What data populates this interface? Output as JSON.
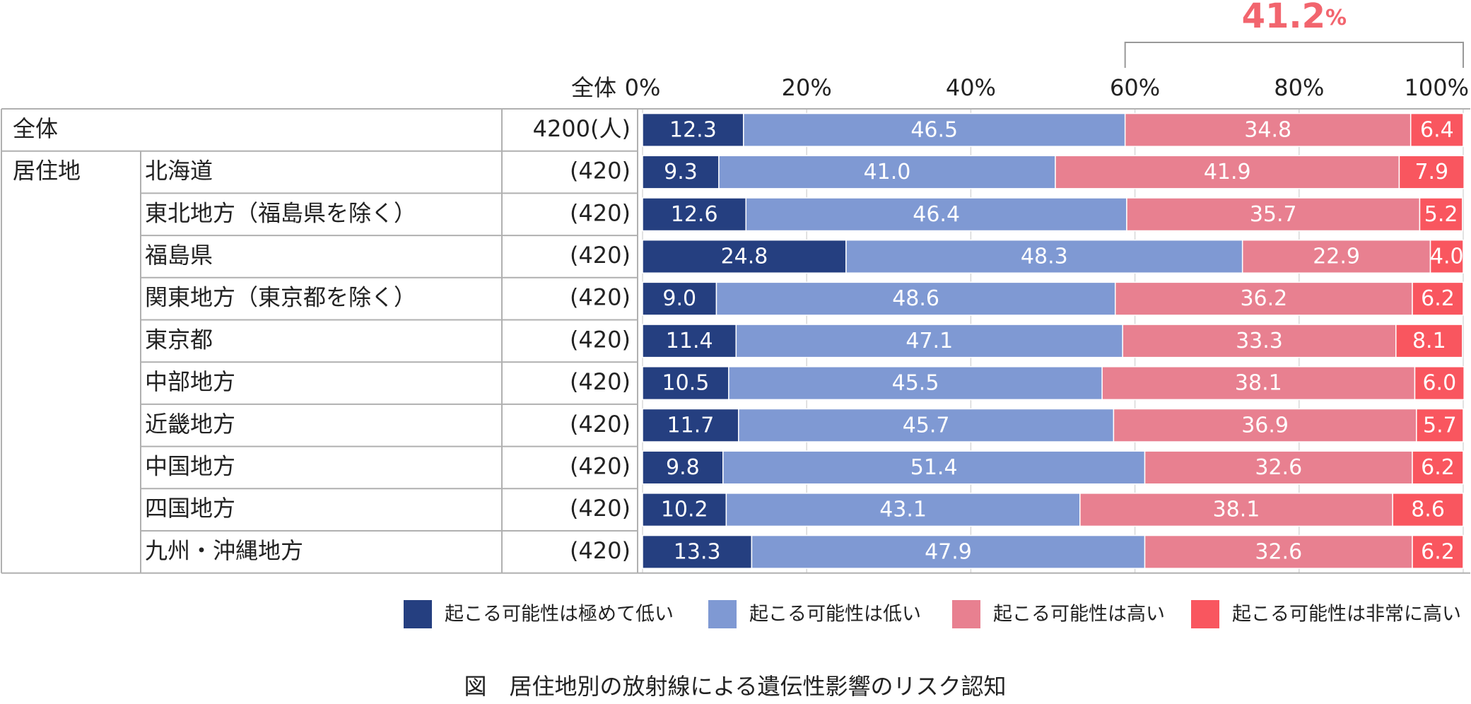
{
  "chart_data": {
    "type": "stacked-horizontal-bar",
    "title": "図　居住地別の放射線による遺伝性影響のリスク認知",
    "annotation": {
      "value": 41.2,
      "label": "41.2%"
    },
    "n_header": "全体",
    "row_group": "居住地",
    "categories": [
      "全体",
      "北海道",
      "東北地方（福島県を除く）",
      "福島県",
      "関東地方（東京都を除く）",
      "東京都",
      "中部地方",
      "近畿地方",
      "中国地方",
      "四国地方",
      "九州・沖縄地方"
    ],
    "n_labels": [
      "4200(人)",
      "(420)",
      "(420)",
      "(420)",
      "(420)",
      "(420)",
      "(420)",
      "(420)",
      "(420)",
      "(420)",
      "(420)"
    ],
    "xlim": [
      0,
      100
    ],
    "xticks": [
      {
        "value": 0,
        "label": "0%"
      },
      {
        "value": 20,
        "label": "20%"
      },
      {
        "value": 40,
        "label": "40%"
      },
      {
        "value": 60,
        "label": "60%"
      },
      {
        "value": 80,
        "label": "80%"
      },
      {
        "value": 100,
        "label": "100%"
      }
    ],
    "grid": true,
    "legend": "bottom",
    "series": [
      {
        "name": "起こる可能性は極めて低い",
        "color": "#253f80",
        "values": [
          12.3,
          9.3,
          12.6,
          24.8,
          9.0,
          11.4,
          10.5,
          11.7,
          9.8,
          10.2,
          13.3
        ],
        "value_labels": [
          "12.3",
          "9.3",
          "12.6",
          "24.8",
          "9.0",
          "11.4",
          "10.5",
          "11.7",
          "9.8",
          "10.2",
          "13.3"
        ]
      },
      {
        "name": "起こる可能性は低い",
        "color": "#7f99d3",
        "values": [
          46.5,
          41.0,
          46.4,
          48.3,
          48.6,
          47.1,
          45.5,
          45.7,
          51.4,
          43.1,
          47.9
        ],
        "value_labels": [
          "46.5",
          "41.0",
          "46.4",
          "48.3",
          "48.6",
          "47.1",
          "45.5",
          "45.7",
          "51.4",
          "43.1",
          "47.9"
        ]
      },
      {
        "name": "起こる可能性は高い",
        "color": "#e88090",
        "values": [
          34.8,
          41.9,
          35.7,
          22.9,
          36.2,
          33.3,
          38.1,
          36.9,
          32.6,
          38.1,
          32.6
        ],
        "value_labels": [
          "34.8",
          "41.9",
          "35.7",
          "22.9",
          "36.2",
          "33.3",
          "38.1",
          "36.9",
          "32.6",
          "38.1",
          "32.6"
        ]
      },
      {
        "name": "起こる可能性は非常に高い",
        "color": "#f9565f",
        "values": [
          6.4,
          7.9,
          5.2,
          4.0,
          6.2,
          8.1,
          6.0,
          5.7,
          6.2,
          8.6,
          6.2
        ],
        "value_labels": [
          "6.4",
          "7.9",
          "5.2",
          "4.0",
          "6.2",
          "8.1",
          "6.0",
          "5.7",
          "6.2",
          "8.6",
          "6.2"
        ]
      }
    ]
  }
}
